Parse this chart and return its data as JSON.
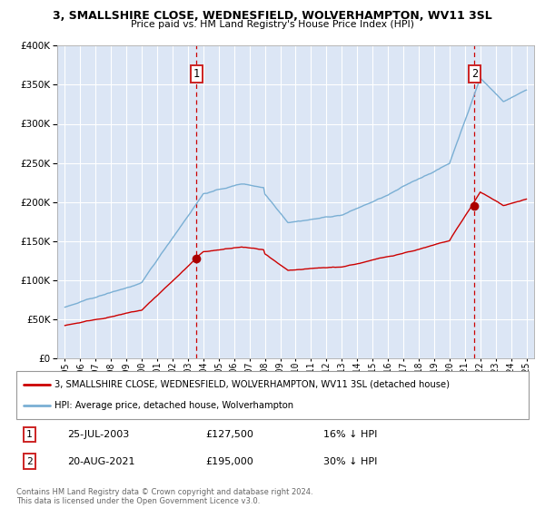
{
  "title_line1": "3, SMALLSHIRE CLOSE, WEDNESFIELD, WOLVERHAMPTON, WV11 3SL",
  "title_line2": "Price paid vs. HM Land Registry's House Price Index (HPI)",
  "bg_color": "#dce6f5",
  "grid_color": "#ffffff",
  "hpi_color": "#7aafd4",
  "price_color": "#cc0000",
  "marker_color": "#aa0000",
  "sale1_date": "25-JUL-2003",
  "sale1_price": 127500,
  "sale1_label": "16% ↓ HPI",
  "sale2_date": "20-AUG-2021",
  "sale2_price": 195000,
  "sale2_label": "30% ↓ HPI",
  "sale1_x": 2003.56,
  "sale2_x": 2021.63,
  "ylim_min": 0,
  "ylim_max": 400000,
  "xlim_min": 1994.5,
  "xlim_max": 2025.5,
  "legend_entry1": "3, SMALLSHIRE CLOSE, WEDNESFIELD, WOLVERHAMPTON, WV11 3SL (detached house)",
  "legend_entry2": "HPI: Average price, detached house, Wolverhampton",
  "footnote": "Contains HM Land Registry data © Crown copyright and database right 2024.\nThis data is licensed under the Open Government Licence v3.0."
}
